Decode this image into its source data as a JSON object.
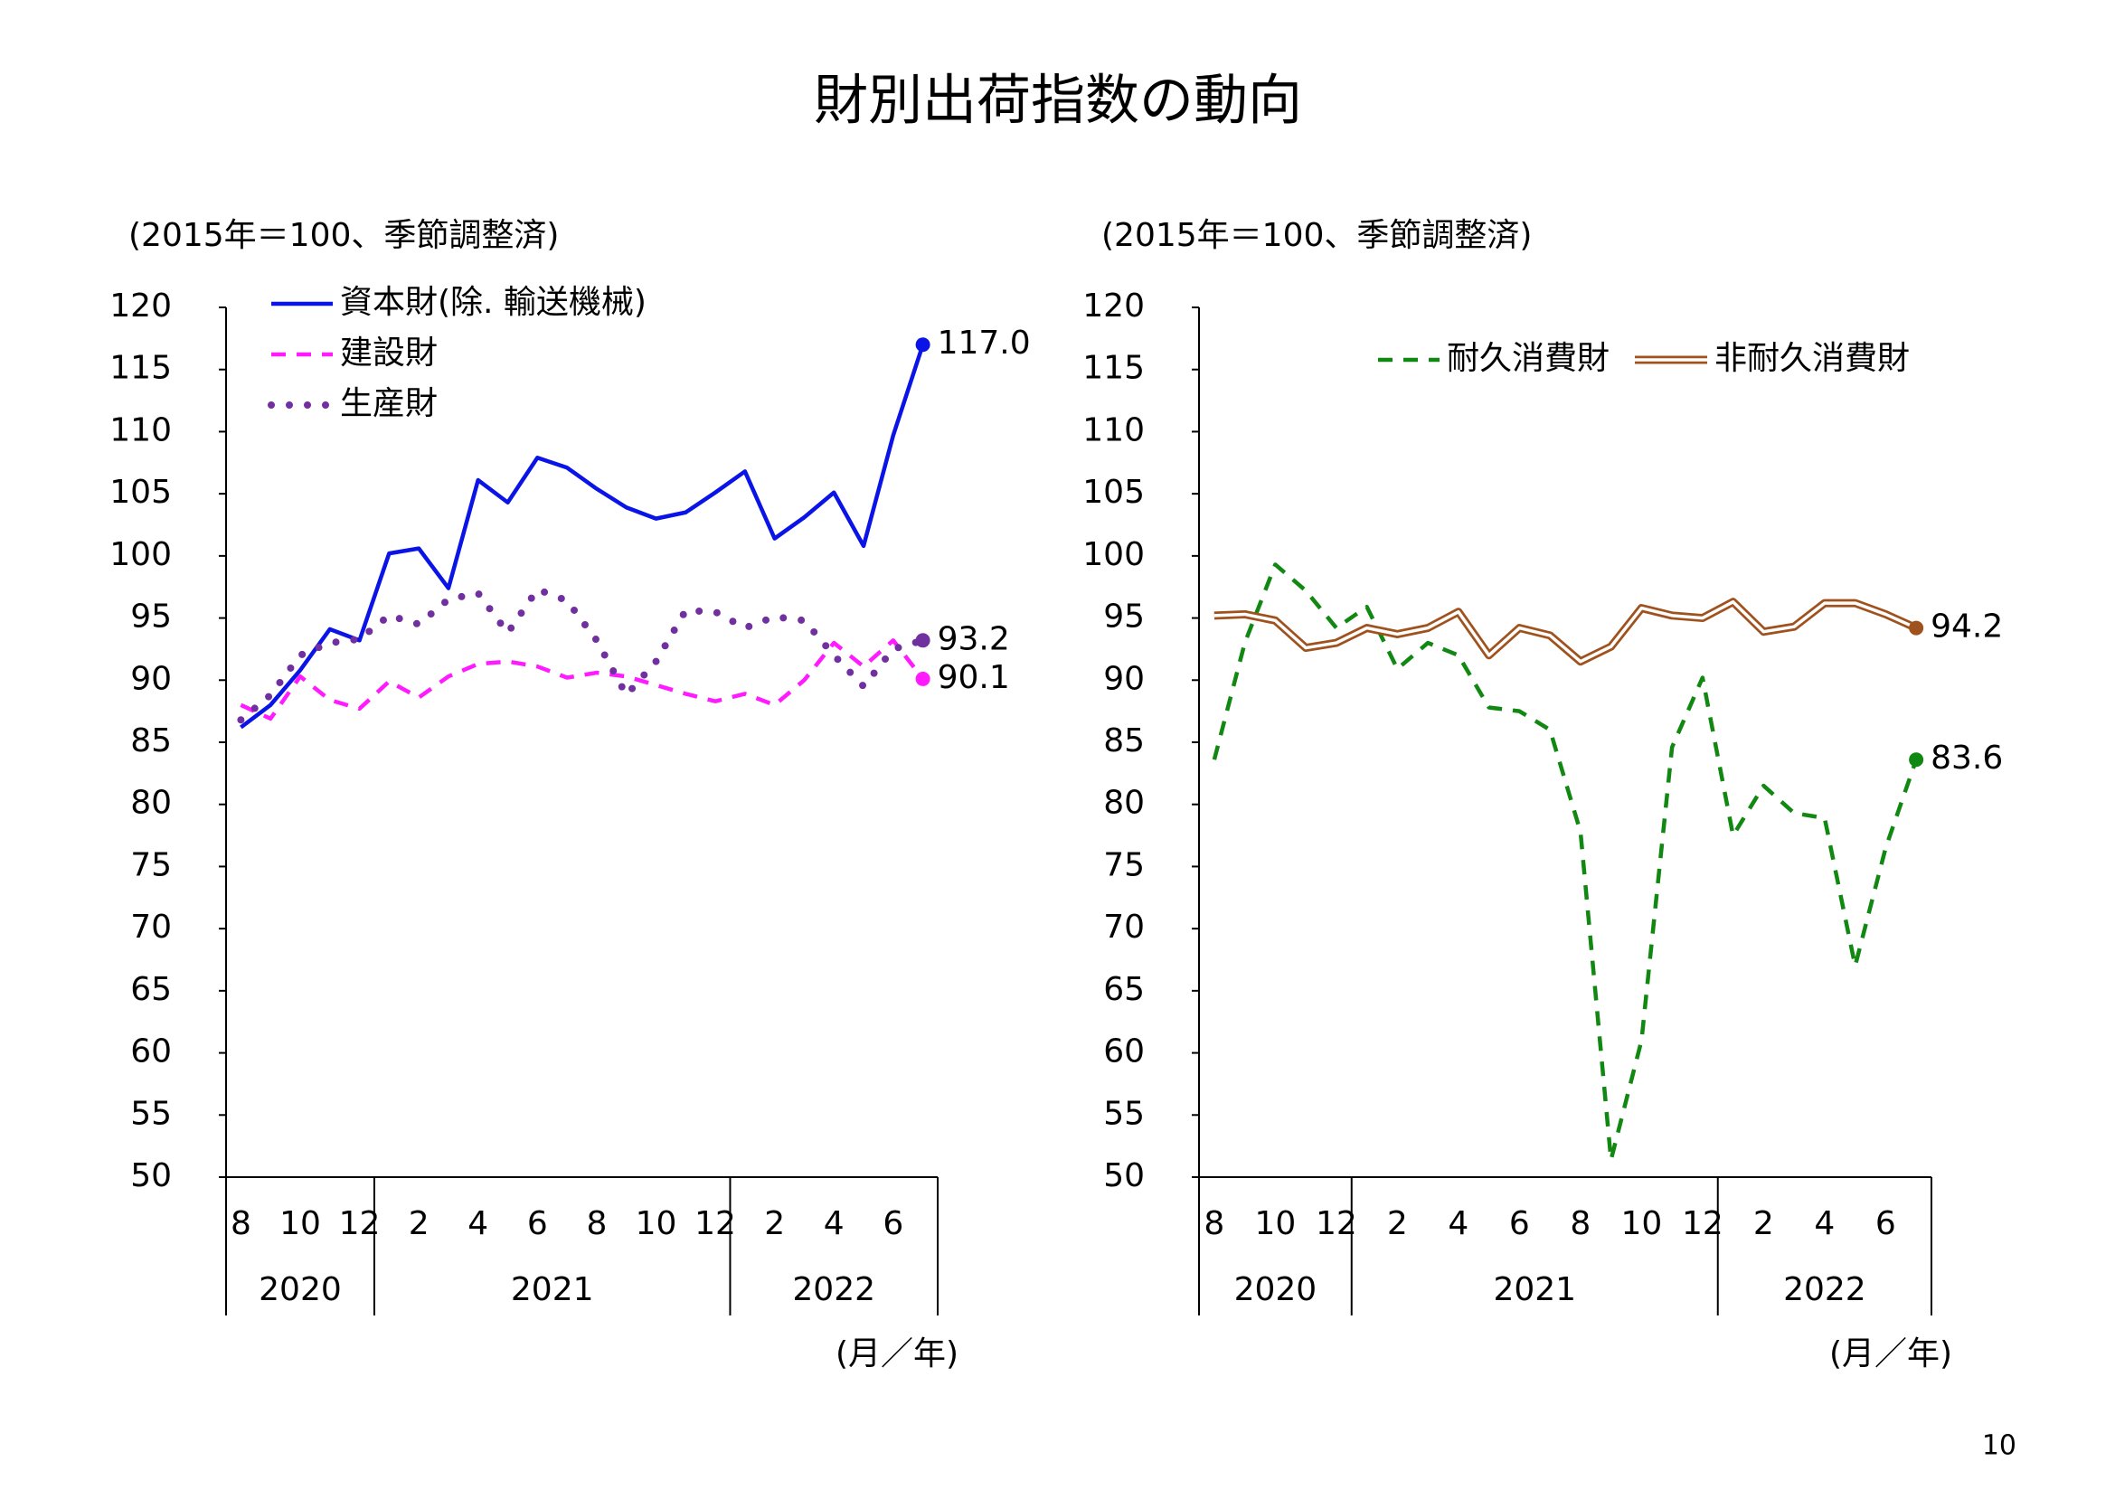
{
  "title": "財別出荷指数の動向",
  "page_number": "10",
  "chart_data": [
    {
      "type": "line",
      "subtitle": "(2015年＝100、季節調整済)",
      "x_label": "(月／年)",
      "categories": [
        "8",
        null,
        "10",
        null,
        "12",
        null,
        "2",
        null,
        "4",
        null,
        "6",
        null,
        "8",
        null,
        "10",
        null,
        "12",
        null,
        "2",
        null,
        "4",
        null,
        "6",
        null
      ],
      "year_groups": [
        {
          "label": "2020",
          "from": 0,
          "to": 4
        },
        {
          "label": "2021",
          "from": 5,
          "to": 16
        },
        {
          "label": "2022",
          "from": 17,
          "to": 23
        }
      ],
      "ylim": [
        50,
        120
      ],
      "yticks": [
        50,
        55,
        60,
        65,
        70,
        75,
        80,
        85,
        90,
        95,
        100,
        105,
        110,
        115,
        120
      ],
      "legend": "vertical",
      "series": [
        {
          "name": "資本財(除. 輸送機械)",
          "color": "#0a14e6",
          "style": "solid",
          "values": [
            86.2,
            88.0,
            90.8,
            94.1,
            93.2,
            100.2,
            100.6,
            97.4,
            106.1,
            104.3,
            107.9,
            107.1,
            105.4,
            103.9,
            103.0,
            103.5,
            105.1,
            106.8,
            101.4,
            103.1,
            105.1,
            100.8,
            109.7,
            117.0
          ],
          "value_labels": [
            null,
            null,
            null,
            null,
            null,
            null,
            null,
            null,
            null,
            null,
            null,
            null,
            null,
            null,
            null,
            null,
            null,
            null,
            null,
            null,
            null,
            null,
            null,
            "117.0"
          ]
        },
        {
          "name": "建設財",
          "color": "#ff1aff",
          "style": "dashed",
          "values": [
            88.0,
            86.9,
            90.3,
            88.4,
            87.7,
            89.9,
            88.6,
            90.3,
            91.3,
            91.5,
            91.1,
            90.2,
            90.6,
            90.3,
            89.6,
            88.9,
            88.3,
            88.9,
            88.0,
            90.0,
            93.0,
            91.1,
            93.2,
            90.1
          ],
          "value_labels": [
            null,
            null,
            null,
            null,
            null,
            null,
            null,
            null,
            null,
            null,
            null,
            null,
            null,
            null,
            null,
            null,
            null,
            null,
            null,
            null,
            null,
            null,
            null,
            "90.1"
          ]
        },
        {
          "name": "生産財",
          "color": "#7030a0",
          "style": "dotted",
          "values": [
            86.8,
            88.8,
            92.0,
            93.0,
            93.3,
            95.2,
            94.5,
            96.5,
            97.0,
            93.8,
            97.3,
            96.4,
            93.2,
            88.8,
            91.5,
            95.6,
            95.5,
            94.2,
            95.1,
            94.8,
            92.0,
            89.5,
            92.5,
            93.2
          ],
          "value_labels": [
            null,
            null,
            null,
            null,
            null,
            null,
            null,
            null,
            null,
            null,
            null,
            null,
            null,
            null,
            null,
            null,
            null,
            null,
            null,
            null,
            null,
            null,
            null,
            "93.2"
          ]
        }
      ]
    },
    {
      "type": "line",
      "subtitle": "(2015年＝100、季節調整済)",
      "x_label": "(月／年)",
      "categories": [
        "8",
        null,
        "10",
        null,
        "12",
        null,
        "2",
        null,
        "4",
        null,
        "6",
        null,
        "8",
        null,
        "10",
        null,
        "12",
        null,
        "2",
        null,
        "4",
        null,
        "6",
        null
      ],
      "year_groups": [
        {
          "label": "2020",
          "from": 0,
          "to": 4
        },
        {
          "label": "2021",
          "from": 5,
          "to": 16
        },
        {
          "label": "2022",
          "from": 17,
          "to": 23
        }
      ],
      "ylim": [
        50,
        120
      ],
      "yticks": [
        50,
        55,
        60,
        65,
        70,
        75,
        80,
        85,
        90,
        95,
        100,
        105,
        110,
        115,
        120
      ],
      "legend": "horizontal",
      "series": [
        {
          "name": "耐久消費財",
          "color": "#118811",
          "style": "dashed",
          "values": [
            83.6,
            93.0,
            99.3,
            97.2,
            94.2,
            95.9,
            90.9,
            93.0,
            92.0,
            87.8,
            87.5,
            86.0,
            77.8,
            51.4,
            61.0,
            84.6,
            90.2,
            77.5,
            81.5,
            79.3,
            78.9,
            67.0,
            76.5,
            83.6
          ],
          "value_labels": [
            null,
            null,
            null,
            null,
            null,
            null,
            null,
            null,
            null,
            null,
            null,
            null,
            null,
            null,
            null,
            null,
            null,
            null,
            null,
            null,
            null,
            null,
            null,
            "83.6"
          ]
        },
        {
          "name": "非耐久消費財",
          "color": "#a0521e",
          "style": "double",
          "values": [
            95.2,
            95.3,
            94.8,
            92.6,
            93.0,
            94.2,
            93.7,
            94.2,
            95.5,
            92.0,
            94.2,
            93.6,
            91.5,
            92.7,
            95.8,
            95.2,
            95.0,
            96.3,
            93.9,
            94.3,
            96.2,
            96.2,
            95.3,
            94.2
          ],
          "value_labels": [
            null,
            null,
            null,
            null,
            null,
            null,
            null,
            null,
            null,
            null,
            null,
            null,
            null,
            null,
            null,
            null,
            null,
            null,
            null,
            null,
            null,
            null,
            null,
            "94.2"
          ]
        }
      ]
    }
  ]
}
